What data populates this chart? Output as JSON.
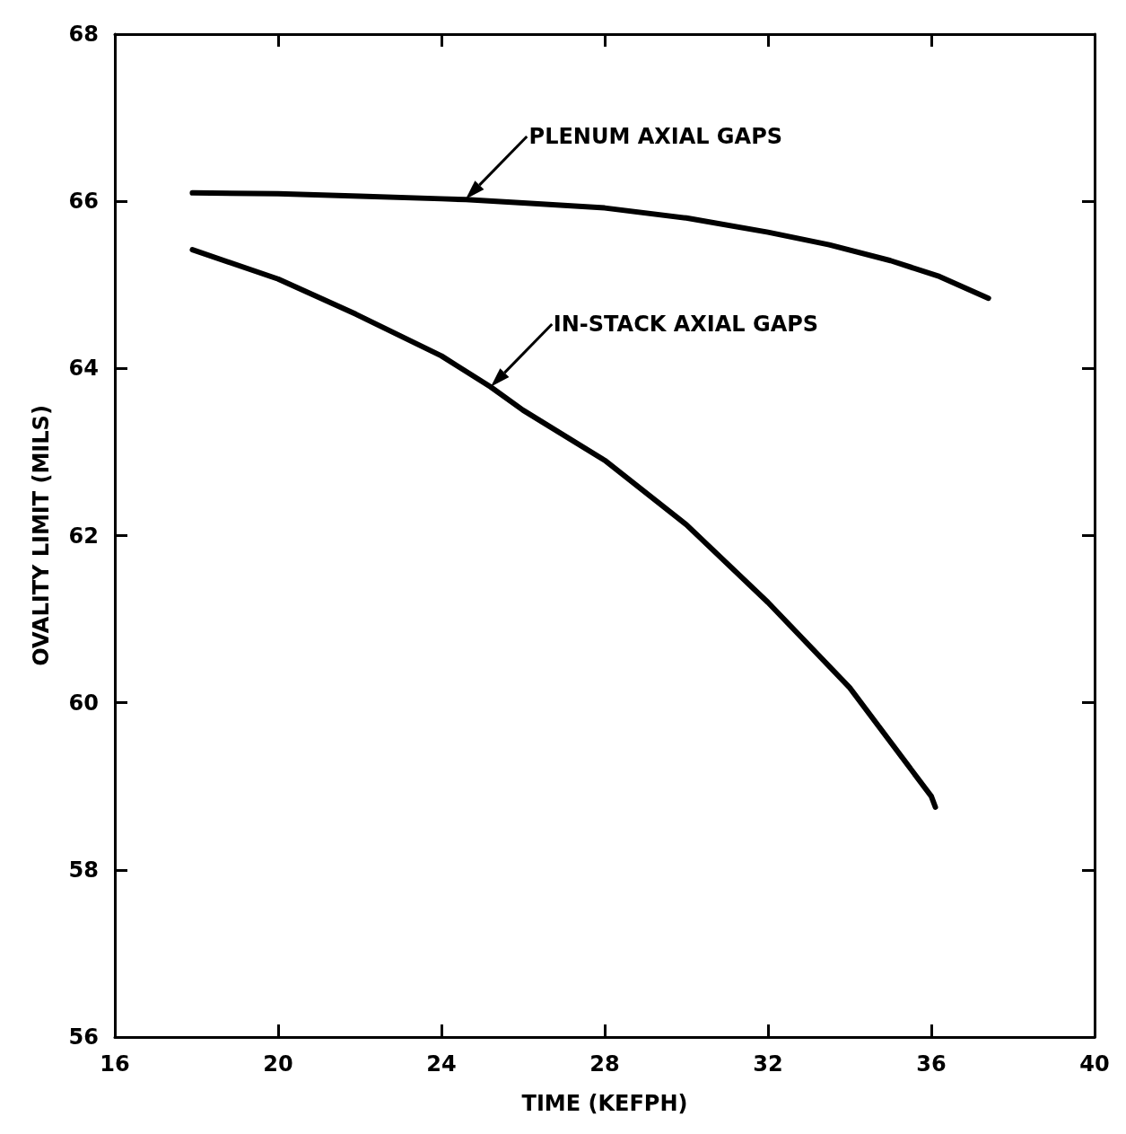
{
  "chart_data": {
    "type": "line",
    "xlabel": "TIME (KEFPH)",
    "ylabel": "OVALITY LIMIT (MILS)",
    "xlim": [
      16,
      40
    ],
    "xticks": [
      16,
      20,
      24,
      28,
      32,
      36,
      40
    ],
    "ylim": [
      56,
      68
    ],
    "yticks": [
      56,
      58,
      60,
      62,
      64,
      66,
      68
    ],
    "grid": false,
    "legend": false,
    "marker": "none",
    "line_style": "solid",
    "series": [
      {
        "color": "#000000",
        "x": [
          17.9,
          20,
          22,
          24,
          24.6,
          26,
          28,
          30,
          32,
          33.5,
          35,
          36.2,
          37.4
        ],
        "values": [
          66.1,
          66.09,
          66.06,
          66.03,
          66.02,
          65.98,
          65.92,
          65.8,
          65.63,
          65.48,
          65.29,
          65.1,
          64.84
        ]
      },
      {
        "color": "#000000",
        "x": [
          17.9,
          20,
          21.9,
          24,
          25.2,
          26,
          28,
          30,
          32,
          34,
          36,
          36.1
        ],
        "values": [
          65.42,
          65.07,
          64.65,
          64.15,
          63.78,
          63.5,
          62.9,
          62.13,
          61.2,
          60.18,
          58.88,
          58.75
        ]
      }
    ],
    "annotations": [
      "PLENUM AXIAL GAPS",
      "IN-STACK AXIAL GAPS"
    ]
  }
}
